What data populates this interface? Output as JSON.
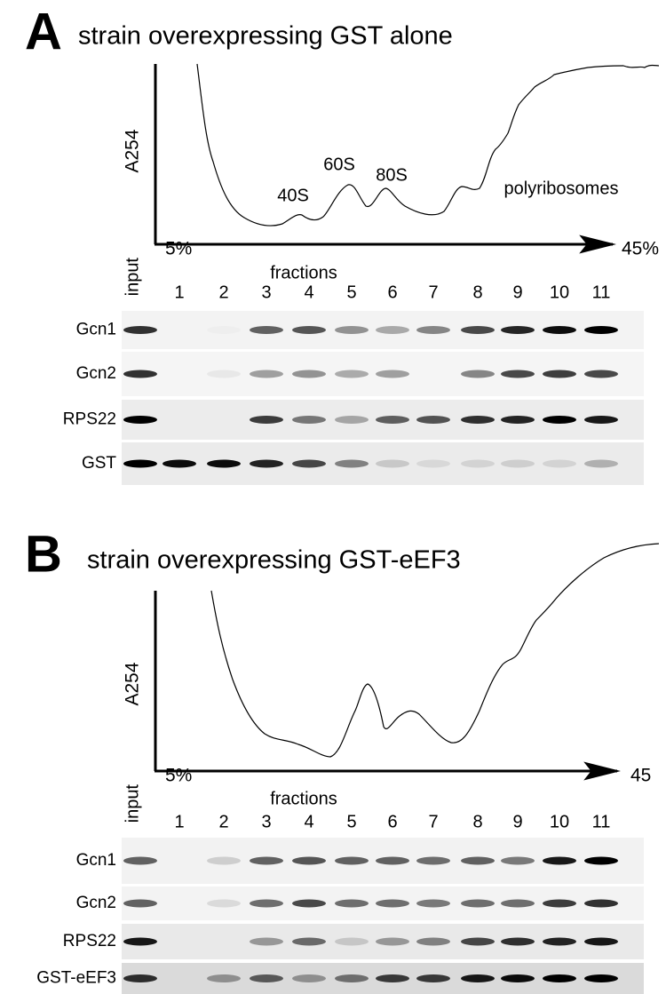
{
  "panels": [
    {
      "letter": "A",
      "title": "strain overexpressing GST alone",
      "y_axis_label": "A254",
      "gradient_start": "5%",
      "gradient_end": "45%",
      "peak_labels": [
        "40S",
        "60S",
        "80S",
        "polyribosomes"
      ],
      "x_axis_label": "fractions",
      "input_label": "input",
      "lanes": [
        "1",
        "2",
        "3",
        "4",
        "5",
        "6",
        "7",
        "8",
        "9",
        "10",
        "11"
      ],
      "blots": [
        "Gcn1",
        "Gcn2",
        "RPS22",
        "GST"
      ]
    },
    {
      "letter": "B",
      "title": "strain overexpressing GST-eEF3",
      "y_axis_label": "A254",
      "gradient_start": "5%",
      "gradient_end": "45",
      "peak_labels": [],
      "x_axis_label": "fractions",
      "input_label": "input",
      "lanes": [
        "1",
        "2",
        "3",
        "4",
        "5",
        "6",
        "7",
        "8",
        "9",
        "10",
        "11"
      ],
      "blots": [
        "Gcn1",
        "Gcn2",
        "RPS22",
        "GST-eEF3"
      ]
    }
  ]
}
